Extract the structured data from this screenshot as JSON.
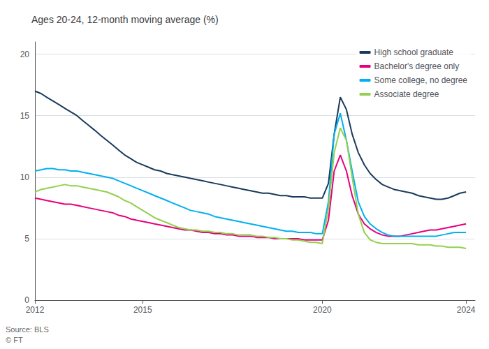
{
  "chart_data": {
    "type": "line",
    "title": "Ages 20-24, 12-month moving average (%)",
    "annotations": [
      "Source: BLS\n© FT"
    ],
    "x": [
      2012.0,
      2012.17,
      2012.33,
      2012.5,
      2012.67,
      2012.83,
      2013.0,
      2013.17,
      2013.33,
      2013.5,
      2013.67,
      2013.83,
      2014.0,
      2014.17,
      2014.33,
      2014.5,
      2014.67,
      2014.83,
      2015.0,
      2015.17,
      2015.33,
      2015.5,
      2015.67,
      2015.83,
      2016.0,
      2016.17,
      2016.33,
      2016.5,
      2016.67,
      2016.83,
      2017.0,
      2017.17,
      2017.33,
      2017.5,
      2017.67,
      2017.83,
      2018.0,
      2018.17,
      2018.33,
      2018.5,
      2018.67,
      2018.83,
      2019.0,
      2019.17,
      2019.33,
      2019.5,
      2019.67,
      2019.83,
      2020.0,
      2020.17,
      2020.33,
      2020.5,
      2020.67,
      2020.83,
      2021.0,
      2021.17,
      2021.33,
      2021.5,
      2021.67,
      2021.83,
      2022.0,
      2022.17,
      2022.33,
      2022.5,
      2022.67,
      2022.83,
      2023.0,
      2023.17,
      2023.33,
      2023.5,
      2023.67,
      2023.83,
      2024.0
    ],
    "series": [
      {
        "name": "High school graduate",
        "color": "#1a3a5c",
        "values": [
          17.0,
          16.8,
          16.5,
          16.2,
          15.9,
          15.6,
          15.3,
          15.0,
          14.6,
          14.2,
          13.8,
          13.4,
          13.0,
          12.6,
          12.2,
          11.8,
          11.5,
          11.2,
          11.0,
          10.8,
          10.6,
          10.5,
          10.3,
          10.2,
          10.1,
          10.0,
          9.9,
          9.8,
          9.7,
          9.6,
          9.5,
          9.4,
          9.3,
          9.2,
          9.1,
          9.0,
          8.9,
          8.8,
          8.7,
          8.7,
          8.6,
          8.5,
          8.5,
          8.4,
          8.4,
          8.4,
          8.3,
          8.3,
          8.3,
          9.5,
          13.5,
          16.5,
          15.5,
          13.5,
          12.0,
          11.0,
          10.3,
          9.8,
          9.4,
          9.2,
          9.0,
          8.9,
          8.8,
          8.7,
          8.5,
          8.4,
          8.3,
          8.2,
          8.2,
          8.3,
          8.5,
          8.7,
          8.8
        ]
      },
      {
        "name": "Bachelor's degree only",
        "color": "#e6007e",
        "values": [
          8.3,
          8.2,
          8.1,
          8.0,
          7.9,
          7.8,
          7.8,
          7.7,
          7.6,
          7.5,
          7.4,
          7.3,
          7.2,
          7.1,
          6.9,
          6.8,
          6.6,
          6.5,
          6.4,
          6.3,
          6.2,
          6.1,
          6.0,
          5.9,
          5.8,
          5.7,
          5.7,
          5.6,
          5.5,
          5.5,
          5.4,
          5.4,
          5.3,
          5.3,
          5.2,
          5.2,
          5.2,
          5.1,
          5.1,
          5.1,
          5.0,
          5.0,
          5.0,
          5.0,
          5.0,
          4.9,
          4.9,
          4.9,
          4.9,
          6.5,
          10.5,
          11.8,
          10.5,
          8.5,
          7.0,
          6.2,
          5.8,
          5.5,
          5.3,
          5.2,
          5.2,
          5.2,
          5.3,
          5.4,
          5.5,
          5.6,
          5.7,
          5.7,
          5.8,
          5.9,
          6.0,
          6.1,
          6.2
        ]
      },
      {
        "name": "Some college, no degree",
        "color": "#00b0f0",
        "values": [
          10.5,
          10.6,
          10.7,
          10.7,
          10.6,
          10.6,
          10.5,
          10.5,
          10.4,
          10.3,
          10.2,
          10.1,
          10.0,
          9.9,
          9.7,
          9.5,
          9.3,
          9.1,
          8.9,
          8.7,
          8.5,
          8.3,
          8.1,
          7.9,
          7.7,
          7.5,
          7.3,
          7.2,
          7.1,
          7.0,
          6.8,
          6.7,
          6.6,
          6.5,
          6.4,
          6.3,
          6.2,
          6.1,
          6.0,
          5.9,
          5.8,
          5.7,
          5.6,
          5.6,
          5.5,
          5.5,
          5.5,
          5.4,
          5.4,
          8.0,
          13.5,
          15.2,
          13.0,
          10.5,
          8.0,
          6.8,
          6.2,
          5.8,
          5.5,
          5.3,
          5.2,
          5.2,
          5.2,
          5.2,
          5.2,
          5.2,
          5.2,
          5.2,
          5.3,
          5.4,
          5.5,
          5.5,
          5.5
        ]
      },
      {
        "name": "Associate degree",
        "color": "#92d050",
        "values": [
          8.8,
          9.0,
          9.1,
          9.2,
          9.3,
          9.4,
          9.3,
          9.3,
          9.2,
          9.1,
          9.0,
          8.9,
          8.8,
          8.6,
          8.4,
          8.1,
          7.9,
          7.6,
          7.3,
          7.0,
          6.7,
          6.5,
          6.3,
          6.1,
          5.9,
          5.8,
          5.7,
          5.7,
          5.6,
          5.6,
          5.5,
          5.5,
          5.4,
          5.4,
          5.3,
          5.3,
          5.3,
          5.2,
          5.2,
          5.1,
          5.1,
          5.0,
          5.0,
          4.9,
          4.9,
          4.8,
          4.7,
          4.7,
          4.6,
          7.5,
          12.0,
          14.0,
          13.0,
          10.0,
          7.0,
          5.5,
          4.9,
          4.7,
          4.6,
          4.6,
          4.6,
          4.6,
          4.6,
          4.6,
          4.5,
          4.5,
          4.5,
          4.4,
          4.4,
          4.3,
          4.3,
          4.3,
          4.2
        ]
      }
    ],
    "xlim": [
      2012.0,
      2024.25
    ],
    "xticks": [
      2012,
      2015,
      2020,
      2024
    ],
    "ylim": [
      0,
      21
    ],
    "yticks": [
      0,
      5,
      10,
      15,
      20
    ],
    "grid": true,
    "legend": "upper right"
  }
}
